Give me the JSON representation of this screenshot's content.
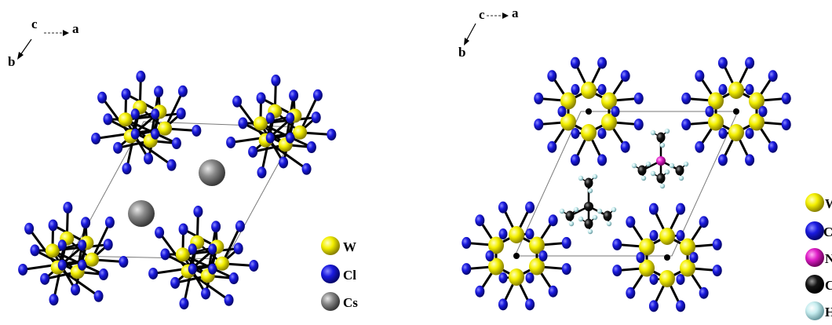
{
  "left": {
    "axes": {
      "c": "c",
      "a": "a",
      "b": "b"
    },
    "legend": [
      {
        "symbol": "W",
        "label": "W",
        "color": "#f2f000"
      },
      {
        "symbol": "Cl",
        "label": "Cl",
        "color": "#1616d8"
      },
      {
        "symbol": "Cs",
        "label": "Cs",
        "color": "#808080"
      }
    ]
  },
  "right": {
    "axes": {
      "c": "c",
      "a": "a",
      "b": "b"
    },
    "legend": [
      {
        "symbol": "W",
        "label": "W",
        "color": "#f2f000"
      },
      {
        "symbol": "Cl",
        "label": "Cl",
        "color": "#1616d8"
      },
      {
        "symbol": "N",
        "label": "N",
        "color": "#e020c8"
      },
      {
        "symbol": "C",
        "label": "C",
        "color": "#101010"
      },
      {
        "symbol": "H",
        "label": "H",
        "color": "#c8eef0"
      }
    ]
  },
  "colors": {
    "tungsten": "#f2f000",
    "chlorine": "#1616d8",
    "cesium": "#808080",
    "nitrogen": "#e020c8",
    "carbon": "#101010",
    "hydrogen": "#c8eef0",
    "bond": "#000000",
    "cell": "#7a7a7a"
  }
}
